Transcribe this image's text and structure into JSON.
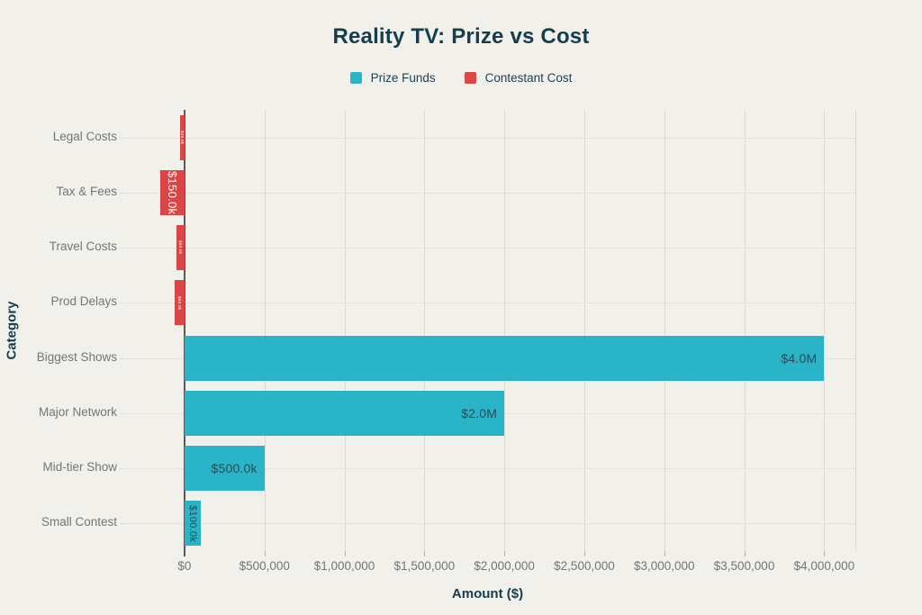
{
  "title": "Reality TV: Prize vs Cost",
  "legend": {
    "items": [
      {
        "label": "Prize Funds",
        "color": "#2ab4c7"
      },
      {
        "label": "Contestant Cost",
        "color": "#dc4545"
      }
    ]
  },
  "colors": {
    "background": "#f1f0ea",
    "title_text": "#153e4c",
    "category_text": "#6f7877",
    "tick_text": "#6f7877",
    "gridline": "#dcd8cd",
    "zero_line": "#59595a",
    "prize_funds": "#2ab4c7",
    "contestant_cost": "#dc4545"
  },
  "chart_data": {
    "type": "bar",
    "orientation": "horizontal",
    "title": "Reality TV: Prize vs Cost",
    "xlabel": "Amount ($)",
    "ylabel": "Category",
    "grid": true,
    "legend_position": "top",
    "categories": [
      "Legal Costs",
      "Tax & Fees",
      "Travel Costs",
      "Prod Delays",
      "Biggest Shows",
      "Major Network",
      "Mid-tier Show",
      "Small Contest"
    ],
    "series": [
      {
        "name": "Prize Funds",
        "color": "#2ab4c7",
        "label_color": "#2e4a54",
        "values": [
          null,
          null,
          null,
          null,
          4000000,
          2000000,
          500000,
          100000
        ],
        "bar_labels": [
          null,
          null,
          null,
          null,
          "$4.0M",
          "$2.0M",
          "$500.0k",
          "$100.0k"
        ]
      },
      {
        "name": "Contestant Cost",
        "color": "#dc4545",
        "label_color": "#ffffff",
        "note": "cost bars drawn extending left of the $0 line",
        "values": [
          -30000,
          -150000,
          -50000,
          -60000,
          null,
          null,
          null,
          null
        ],
        "bar_labels": [
          "$30.0k",
          "$150.0k",
          "$50.0k",
          "$60.0k",
          null,
          null,
          null,
          null
        ]
      }
    ],
    "x_axis": {
      "label": "Amount ($)",
      "min": -405000,
      "max": 4195000,
      "tick_step": 500000,
      "ticks": [
        {
          "value": 0,
          "label": "$0"
        },
        {
          "value": 500000,
          "label": "$500,000"
        },
        {
          "value": 1000000,
          "label": "$1,000,000"
        },
        {
          "value": 1500000,
          "label": "$1,500,000"
        },
        {
          "value": 2000000,
          "label": "$2,000,000"
        },
        {
          "value": 2500000,
          "label": "$2,500,000"
        },
        {
          "value": 3000000,
          "label": "$3,000,000"
        },
        {
          "value": 3500000,
          "label": "$3,500,000"
        },
        {
          "value": 4000000,
          "label": "$4,000,000"
        }
      ]
    },
    "y_axis": {
      "label": "Category"
    }
  }
}
